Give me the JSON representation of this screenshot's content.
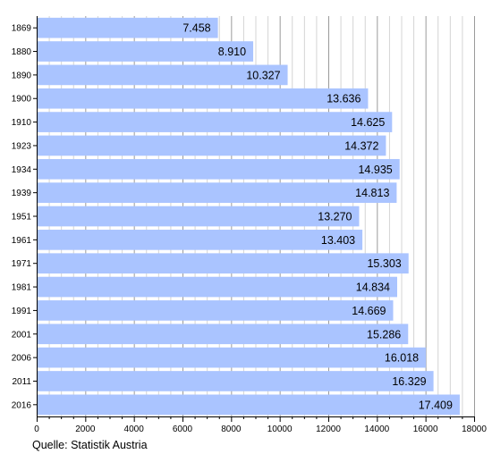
{
  "chart_data": {
    "type": "bar",
    "orientation": "horizontal",
    "categories": [
      "1869",
      "1880",
      "1890",
      "1900",
      "1910",
      "1923",
      "1934",
      "1939",
      "1951",
      "1961",
      "1971",
      "1981",
      "1991",
      "2001",
      "2006",
      "2011",
      "2016"
    ],
    "values": [
      7458,
      8910,
      10327,
      13636,
      14625,
      14372,
      14935,
      14813,
      13270,
      13403,
      15303,
      14834,
      14669,
      15286,
      16018,
      16329,
      17409
    ],
    "value_labels": [
      "7.458",
      "8.910",
      "10.327",
      "13.636",
      "14.625",
      "14.372",
      "14.935",
      "14.813",
      "13.270",
      "13.403",
      "15.303",
      "14.834",
      "14.669",
      "15.286",
      "16.018",
      "16.329",
      "17.409"
    ],
    "x_ticks": [
      "0",
      "2000",
      "4000",
      "6000",
      "8000",
      "10000",
      "12000",
      "14000",
      "16000",
      "18000"
    ],
    "xlim": [
      0,
      18000
    ],
    "grid": true,
    "bar_color": "#aac4ff",
    "title": "",
    "xlabel": "",
    "ylabel": ""
  },
  "source": "Quelle: Statistik Austria"
}
